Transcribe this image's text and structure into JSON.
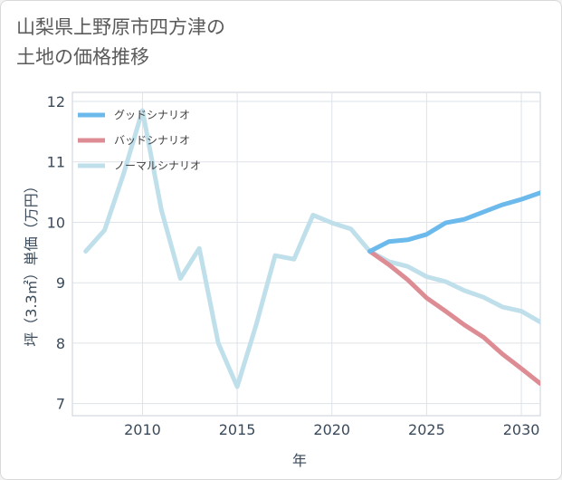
{
  "chart_data": {
    "type": "line",
    "title": "山梨県上野原市四方津の\n土地の価格推移",
    "xlabel": "年",
    "ylabel": "坪（3.3㎡）単価（万円）",
    "xlim": [
      2006.3,
      2031
    ],
    "ylim": [
      6.8,
      12.15
    ],
    "xticks": [
      2010,
      2015,
      2020,
      2025,
      2030
    ],
    "yticks": [
      7,
      8,
      9,
      10,
      11,
      12
    ],
    "grid": true,
    "legend_position": "top-left",
    "series": [
      {
        "name": "グッドシナリオ",
        "color": "#6cb9ec",
        "x": [
          2022,
          2023,
          2024,
          2025,
          2026,
          2027,
          2028,
          2029,
          2030,
          2031
        ],
        "y": [
          9.52,
          9.68,
          9.71,
          9.8,
          9.99,
          10.05,
          10.17,
          10.29,
          10.38,
          10.49
        ]
      },
      {
        "name": "バッドシナリオ",
        "color": "#de8c94",
        "x": [
          2022,
          2023,
          2024,
          2025,
          2026,
          2027,
          2028,
          2029,
          2030,
          2031
        ],
        "y": [
          9.52,
          9.3,
          9.05,
          8.75,
          8.53,
          8.3,
          8.1,
          7.82,
          7.58,
          7.33
        ]
      },
      {
        "name": "ノーマルシナリオ",
        "color": "#bfdfeb",
        "x": [
          2007,
          2008,
          2009,
          2010,
          2011,
          2012,
          2013,
          2014,
          2015,
          2016,
          2017,
          2018,
          2019,
          2020,
          2021,
          2022,
          2023,
          2024,
          2025,
          2026,
          2027,
          2028,
          2029,
          2030,
          2031
        ],
        "y": [
          9.52,
          9.87,
          10.8,
          11.85,
          10.2,
          9.07,
          9.57,
          8.0,
          7.28,
          8.3,
          9.45,
          9.39,
          10.12,
          9.99,
          9.89,
          9.52,
          9.35,
          9.27,
          9.1,
          9.02,
          8.87,
          8.76,
          8.6,
          8.53,
          8.35
        ]
      }
    ]
  }
}
